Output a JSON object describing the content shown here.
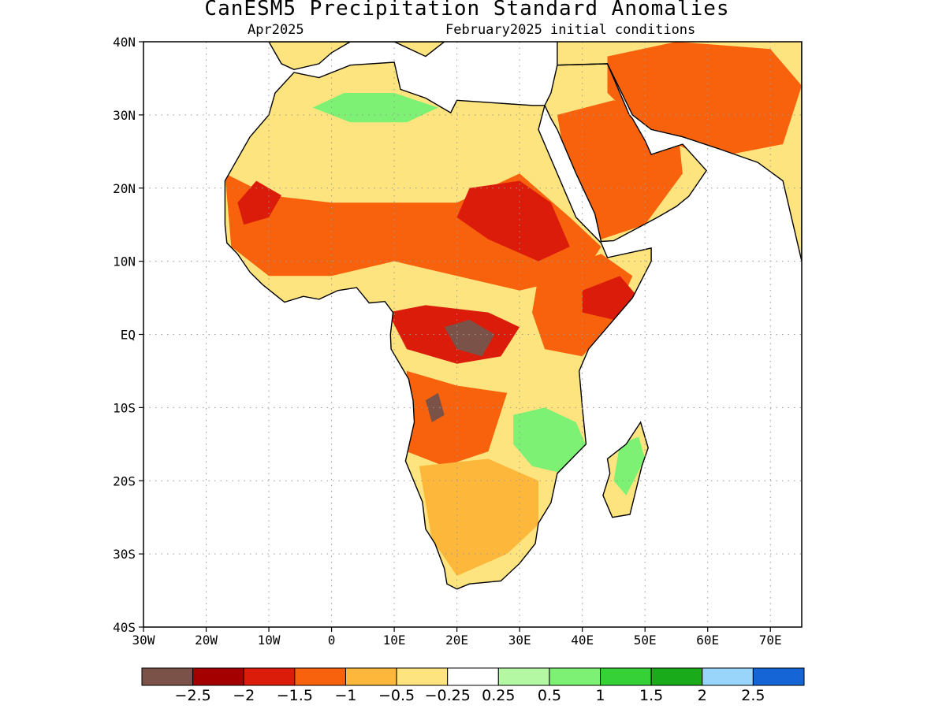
{
  "title": "CanESM5 Precipitation Standard Anomalies",
  "subtitle_left": "Apr2025",
  "subtitle_right": "February2025 initial conditions",
  "map": {
    "lon_range": [
      -30,
      75
    ],
    "lat_range": [
      -40,
      40
    ],
    "lon_ticks": [
      {
        "value": -30,
        "label": "30W"
      },
      {
        "value": -20,
        "label": "20W"
      },
      {
        "value": -10,
        "label": "10W"
      },
      {
        "value": 0,
        "label": "0"
      },
      {
        "value": 10,
        "label": "10E"
      },
      {
        "value": 20,
        "label": "20E"
      },
      {
        "value": 30,
        "label": "30E"
      },
      {
        "value": 40,
        "label": "40E"
      },
      {
        "value": 50,
        "label": "50E"
      },
      {
        "value": 60,
        "label": "60E"
      },
      {
        "value": 70,
        "label": "70E"
      }
    ],
    "lat_ticks": [
      {
        "value": 40,
        "label": "40N"
      },
      {
        "value": 30,
        "label": "30N"
      },
      {
        "value": 20,
        "label": "20N"
      },
      {
        "value": 10,
        "label": "10N"
      },
      {
        "value": 0,
        "label": "EQ"
      },
      {
        "value": -10,
        "label": "10S"
      },
      {
        "value": -20,
        "label": "20S"
      },
      {
        "value": -30,
        "label": "30S"
      },
      {
        "value": -40,
        "label": "40S"
      }
    ],
    "gridlines": "dotted"
  },
  "colorbar": {
    "colors": [
      "#7b5248",
      "#a50000",
      "#dc1c0b",
      "#f8620d",
      "#fdb83c",
      "#fee47e",
      "#ffffff",
      "#b5f8a4",
      "#7cf174",
      "#36d037",
      "#1aab1b",
      "#99d4fb",
      "#1565d6"
    ],
    "labels": [
      "−2.5",
      "−2",
      "−1.5",
      "−1",
      "−0.5",
      "−0.25",
      "0.25",
      "0.5",
      "1",
      "1.5",
      "2",
      "2.5"
    ]
  },
  "anomaly_regions": [
    {
      "name": "north-africa-dry",
      "lon": [
        [
          -13,
          28
        ],
        [
          -3,
          33
        ],
        [
          10,
          34
        ],
        [
          17,
          31
        ],
        [
          25,
          31
        ],
        [
          33,
          31
        ],
        [
          30,
          22
        ],
        [
          15,
          20
        ],
        [
          0,
          21
        ],
        [
          -10,
          22
        ],
        [
          -16,
          21
        ]
      ],
      "level": -0.5
    },
    {
      "name": "sahara-green-band",
      "lon": [
        [
          -3,
          31
        ],
        [
          2,
          33
        ],
        [
          10,
          33
        ],
        [
          17,
          31
        ],
        [
          12,
          29
        ],
        [
          3,
          29
        ]
      ],
      "level": 0.75
    },
    {
      "name": "sahel-moderate-dry",
      "lon": [
        [
          -17,
          22
        ],
        [
          -10,
          19
        ],
        [
          0,
          18
        ],
        [
          10,
          18
        ],
        [
          20,
          18
        ],
        [
          30,
          22
        ],
        [
          38,
          16
        ],
        [
          43,
          12
        ],
        [
          40,
          8
        ],
        [
          30,
          6
        ],
        [
          20,
          8
        ],
        [
          10,
          10
        ],
        [
          0,
          8
        ],
        [
          -10,
          8
        ],
        [
          -16,
          12
        ]
      ],
      "level": -1.25
    },
    {
      "name": "west-africa-strong-dry",
      "lon": [
        [
          -15,
          18
        ],
        [
          -12,
          21
        ],
        [
          -8,
          19
        ],
        [
          -10,
          16
        ],
        [
          -14,
          15
        ]
      ],
      "level": -1.75
    },
    {
      "name": "sudan-strong-dry",
      "lon": [
        [
          22,
          20
        ],
        [
          30,
          21
        ],
        [
          35,
          18
        ],
        [
          38,
          12
        ],
        [
          33,
          10
        ],
        [
          25,
          13
        ],
        [
          20,
          16
        ]
      ],
      "level": -1.75
    },
    {
      "name": "arabia-dry",
      "lon": [
        [
          36,
          30
        ],
        [
          45,
          32
        ],
        [
          55,
          30
        ],
        [
          56,
          22
        ],
        [
          50,
          15
        ],
        [
          43,
          13
        ],
        [
          38,
          20
        ]
      ],
      "level": -1.25
    },
    {
      "name": "iran-dry",
      "lon": [
        [
          44,
          38
        ],
        [
          55,
          40
        ],
        [
          70,
          39
        ],
        [
          75,
          34
        ],
        [
          72,
          26
        ],
        [
          60,
          24
        ],
        [
          50,
          28
        ],
        [
          44,
          33
        ]
      ],
      "level": -1.5
    },
    {
      "name": "central-africa-very-dry",
      "lon": [
        [
          9,
          3
        ],
        [
          15,
          4
        ],
        [
          25,
          3
        ],
        [
          30,
          1
        ],
        [
          27,
          -3
        ],
        [
          20,
          -4
        ],
        [
          12,
          -2
        ]
      ],
      "level": -2
    },
    {
      "name": "congo-extreme-dry",
      "lon": [
        [
          18,
          1
        ],
        [
          22,
          2
        ],
        [
          26,
          0
        ],
        [
          24,
          -3
        ],
        [
          20,
          -2
        ]
      ],
      "level": -2.75
    },
    {
      "name": "angola-dry",
      "lon": [
        [
          12,
          -5
        ],
        [
          20,
          -7
        ],
        [
          28,
          -8
        ],
        [
          25,
          -16
        ],
        [
          18,
          -18
        ],
        [
          12,
          -16
        ]
      ],
      "level": -1.25
    },
    {
      "name": "angola-extreme-dry",
      "lon": [
        [
          15,
          -9
        ],
        [
          17,
          -8
        ],
        [
          18,
          -11
        ],
        [
          16,
          -12
        ]
      ],
      "level": -2.75
    },
    {
      "name": "east-africa-dry",
      "lon": [
        [
          33,
          8
        ],
        [
          43,
          11
        ],
        [
          48,
          8
        ],
        [
          45,
          2
        ],
        [
          40,
          -3
        ],
        [
          34,
          -2
        ],
        [
          32,
          3
        ]
      ],
      "level": -1.25
    },
    {
      "name": "horn-strong-dry",
      "lon": [
        [
          40,
          6
        ],
        [
          46,
          8
        ],
        [
          49,
          5
        ],
        [
          45,
          2
        ],
        [
          40,
          3
        ]
      ],
      "level": -1.75
    },
    {
      "name": "mozambique-green",
      "lon": [
        [
          29,
          -11
        ],
        [
          34,
          -10
        ],
        [
          39,
          -12
        ],
        [
          41,
          -16
        ],
        [
          37,
          -19
        ],
        [
          32,
          -18
        ],
        [
          29,
          -15
        ]
      ],
      "level": 0.9
    },
    {
      "name": "southern-africa-mild-dry",
      "lon": [
        [
          14,
          -18
        ],
        [
          25,
          -17
        ],
        [
          33,
          -20
        ],
        [
          33,
          -26
        ],
        [
          28,
          -30
        ],
        [
          20,
          -33
        ],
        [
          16,
          -28
        ]
      ],
      "level": -0.75
    },
    {
      "name": "madagascar-green",
      "lon": [
        [
          46,
          -15
        ],
        [
          49,
          -14
        ],
        [
          50,
          -17
        ],
        [
          47,
          -22
        ],
        [
          45,
          -20
        ]
      ],
      "level": 0.6
    }
  ]
}
